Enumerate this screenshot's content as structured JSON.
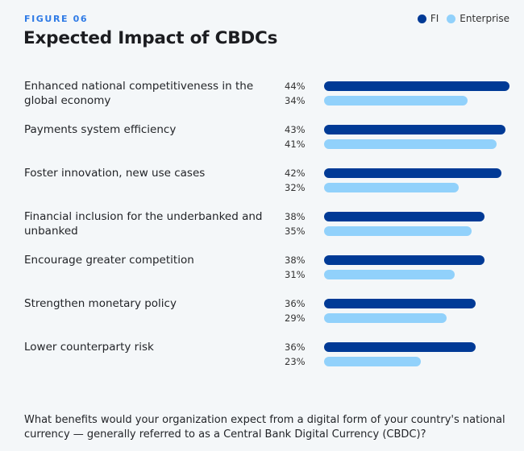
{
  "header": {
    "figure_label": "FIGURE 06",
    "title": "Expected Impact of CBDCs"
  },
  "legend": [
    {
      "name": "FI",
      "color": "#003a96"
    },
    {
      "name": "Enterprise",
      "color": "#91d1fb"
    }
  ],
  "footer": {
    "question": "What benefits would your organization expect from a digital form of your country's national currency — generally referred to as a Central Bank Digital Currency (CBDC)?"
  },
  "chart_data": {
    "type": "bar",
    "orientation": "horizontal",
    "title": "Expected Impact of CBDCs",
    "xlabel": "",
    "ylabel": "",
    "unit": "%",
    "xlim": [
      0,
      44
    ],
    "grid": false,
    "legend_position": "top-right",
    "categories": [
      "Enhanced national competitiveness in the global economy",
      "Payments system efficiency",
      "Foster innovation, new use cases",
      "Financial inclusion for the underbanked and unbanked",
      "Encourage greater competition",
      "Strengthen monetary policy",
      "Lower counterparty risk"
    ],
    "series": [
      {
        "name": "FI",
        "color": "#003a96",
        "values": [
          44,
          43,
          42,
          38,
          38,
          36,
          36
        ]
      },
      {
        "name": "Enterprise",
        "color": "#91d1fb",
        "values": [
          34,
          41,
          32,
          35,
          31,
          29,
          23
        ]
      }
    ]
  }
}
